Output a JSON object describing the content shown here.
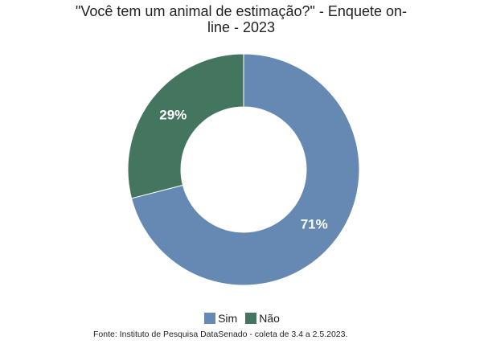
{
  "chart_data": {
    "type": "pie",
    "variant": "donut",
    "title": "\"Você tem um animal de estimação?\" - Enquete on-line - 2023",
    "title_lines": [
      "\"Você tem um animal de estimação?\" - Enquete on-",
      "line - 2023"
    ],
    "categories": [
      "Sim",
      "Não"
    ],
    "values": [
      71,
      29
    ],
    "value_labels": [
      "71%",
      "29%"
    ],
    "colors": [
      "#6589b3",
      "#44755f"
    ],
    "legend_position": "bottom",
    "source": "Fonte: Instituto de Pesquisa DataSenado - coleta de 3.4 a 2.5.2023."
  }
}
